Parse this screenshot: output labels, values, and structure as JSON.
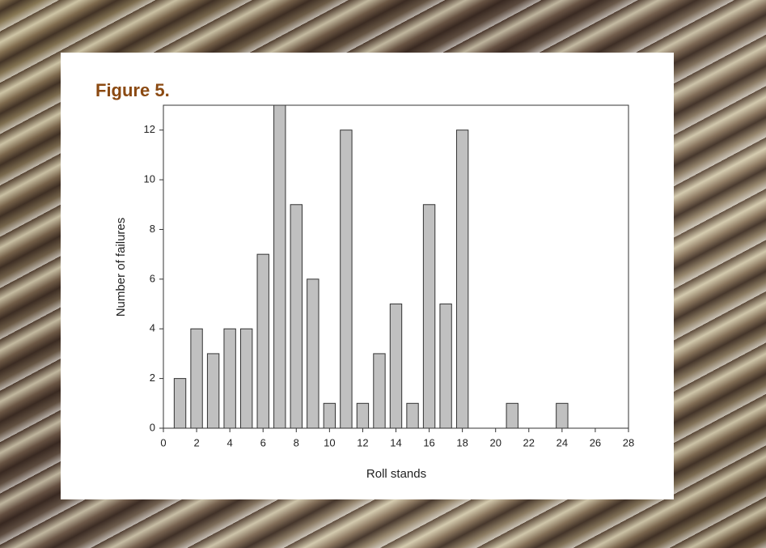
{
  "chart_data": {
    "type": "bar",
    "title": "Figure 5.",
    "x_label": "Roll stands",
    "y_label": "Number of failures",
    "x": [
      1,
      2,
      3,
      4,
      5,
      6,
      7,
      8,
      9,
      10,
      11,
      12,
      13,
      14,
      15,
      16,
      17,
      18,
      21,
      24
    ],
    "values": [
      2,
      4,
      3,
      4,
      4,
      7,
      13,
      9,
      6,
      1,
      12,
      1,
      3,
      5,
      1,
      9,
      5,
      12,
      1,
      1
    ],
    "color": "#c0c0c0",
    "xlim": [
      0,
      28
    ],
    "xticks": [
      0,
      2,
      4,
      6,
      8,
      10,
      12,
      14,
      16,
      18,
      20,
      22,
      24,
      26,
      28
    ],
    "ylim": [
      0,
      13
    ],
    "yticks": [
      0,
      2,
      4,
      6,
      8,
      10,
      12
    ]
  }
}
